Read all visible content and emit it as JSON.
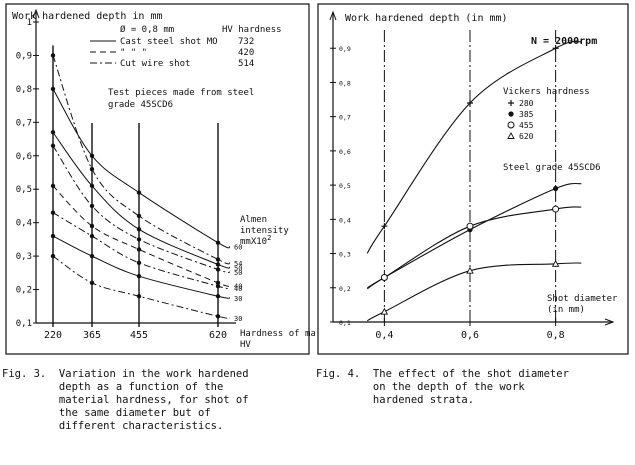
{
  "chart_data": [
    {
      "type": "line",
      "figure": "Fig. 3",
      "title": "Work hardened depth in mm",
      "xlabel": "Hardness of material HV",
      "ylabel": "Work hardened depth in mm",
      "categories": [
        "220",
        "365",
        "455",
        "620"
      ],
      "x": [
        220,
        365,
        455,
        620
      ],
      "ylim": [
        0.1,
        1.0
      ],
      "yticks": [
        "0,1",
        "0,2",
        "0,3",
        "0,4",
        "0,5",
        "0,6",
        "0,7",
        "0,8",
        "0,9",
        "1"
      ],
      "header": {
        "diameter": "Ø = 0,8 mm",
        "hv_title": "HV hardness",
        "legend": [
          {
            "name": "Cast steel shot MO",
            "hv": "732",
            "style": "solid"
          },
          {
            "name": "\"    \"    \"",
            "hv": "420",
            "style": "dashed"
          },
          {
            "name": "Cut wire shot",
            "hv": "514",
            "style": "dashdot"
          }
        ]
      },
      "note": [
        "Test pieces made from steel",
        "grade 45SCD6"
      ],
      "almen_label": [
        "Almen",
        "intensity",
        "mmX10",
        "2"
      ],
      "series": [
        {
          "name": "Cast steel shot MO, Almen 60",
          "style": "solid",
          "almen": "60",
          "values": [
            0.8,
            0.6,
            0.49,
            0.34
          ]
        },
        {
          "name": "Cut wire shot, Almen 54",
          "style": "dashdot",
          "almen": "54",
          "values": [
            0.9,
            0.56,
            0.42,
            0.29
          ]
        },
        {
          "name": "Cast steel shot MO, Almen 50",
          "style": "solid",
          "almen": "50",
          "values": [
            0.67,
            0.51,
            0.38,
            0.275
          ]
        },
        {
          "name": "Cut wire shot, Almen 50",
          "style": "dashdot",
          "almen": "50",
          "values": [
            0.63,
            0.45,
            0.35,
            0.26
          ]
        },
        {
          "name": "Cast steel shot MO, Almen 40",
          "style": "dashed",
          "almen": "40",
          "values": [
            0.51,
            0.39,
            0.32,
            0.22
          ]
        },
        {
          "name": "Cut wire shot, Almen 40",
          "style": "dashdot",
          "almen": "40",
          "values": [
            0.43,
            0.36,
            0.28,
            0.21
          ]
        },
        {
          "name": "Cast steel shot MO, Almen 30",
          "style": "solid",
          "almen": "30",
          "values": [
            0.36,
            0.3,
            0.24,
            0.18
          ]
        },
        {
          "name": "Cut wire shot, Almen 30",
          "style": "dashdot",
          "almen": "30",
          "values": [
            0.3,
            0.22,
            0.18,
            0.12
          ]
        }
      ]
    },
    {
      "type": "line",
      "figure": "Fig. 4",
      "title": "Work hardened depth (in mm)",
      "xlabel": "Shot diameter (in mm)",
      "ylabel": "Work hardened depth (in mm)",
      "rpm_label": "N = 2000rpm",
      "x": [
        0.4,
        0.6,
        0.8
      ],
      "xtick_labels": [
        "0,4",
        "0,6",
        "0,8"
      ],
      "xlim": [
        0.28,
        0.92
      ],
      "ylim": [
        0.1,
        1.0
      ],
      "yticks": [
        "0,1",
        "0,2",
        "0,3",
        "0,4",
        "0,5",
        "0,6",
        "0,7",
        "0,8",
        "0,9"
      ],
      "legend_title": "Vickers hardness",
      "steel_label": "Steel grade 45SCD6",
      "series": [
        {
          "name": "280",
          "marker": "+",
          "values": [
            0.38,
            0.74,
            0.9
          ]
        },
        {
          "name": "385",
          "marker": "•",
          "values": [
            0.23,
            0.37,
            0.49
          ]
        },
        {
          "name": "455",
          "marker": "○",
          "values": [
            0.23,
            0.38,
            0.43
          ]
        },
        {
          "name": "620",
          "marker": "△",
          "values": [
            0.13,
            0.25,
            0.27
          ]
        }
      ]
    }
  ],
  "captions": {
    "fig3_label": "Fig. 3.",
    "fig3_text": "Variation in the work hardened\ndepth as a function of the\nmaterial hardness, for shot of\nthe same diameter but of\ndifferent characteristics.",
    "fig4_label": "Fig. 4.",
    "fig4_text": "The effect of the shot diameter\non the depth of the work\nhardened strata."
  },
  "colors": {
    "ink": "#111111",
    "paper": "#ffffff"
  }
}
